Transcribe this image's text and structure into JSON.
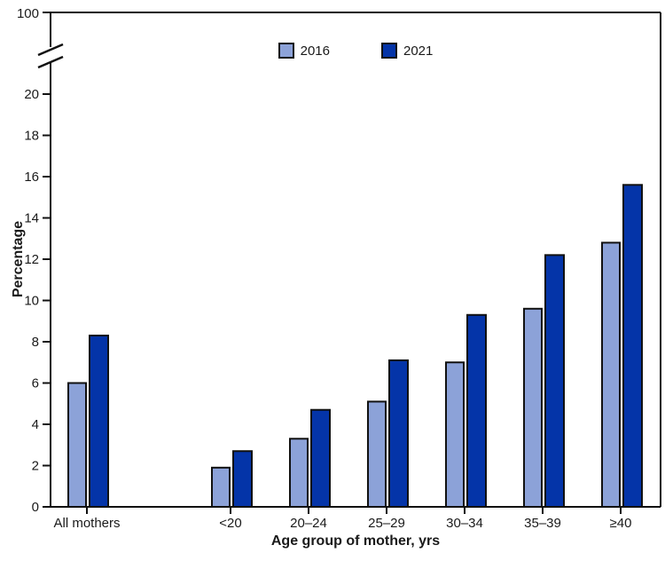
{
  "figure": {
    "background": "#ffffff",
    "frame_color": "#111111",
    "text_color": "#1a1a1a"
  },
  "chart_data": {
    "type": "bar",
    "title": "",
    "xlabel": "Age group of mother, yrs",
    "ylabel": "Percentage",
    "categories": [
      "All mothers",
      "<20",
      "20–24",
      "25–29",
      "30–34",
      "35–39",
      "≥40"
    ],
    "series": [
      {
        "name": "2016",
        "color": "#8CA2D8",
        "values": [
          6.0,
          1.9,
          3.3,
          5.1,
          7.0,
          9.6,
          12.8
        ]
      },
      {
        "name": "2021",
        "color": "#0434A8",
        "values": [
          8.3,
          2.7,
          4.7,
          7.1,
          9.3,
          12.2,
          15.6
        ]
      }
    ],
    "y_axis": {
      "ticks": [
        0,
        2,
        4,
        6,
        8,
        10,
        12,
        14,
        16,
        18,
        20
      ],
      "top_tick": 100,
      "axis_break": true,
      "ylim": [
        0,
        20
      ]
    },
    "grid": false,
    "legend_position": "top-center",
    "bar_outline_color": "#111111"
  }
}
